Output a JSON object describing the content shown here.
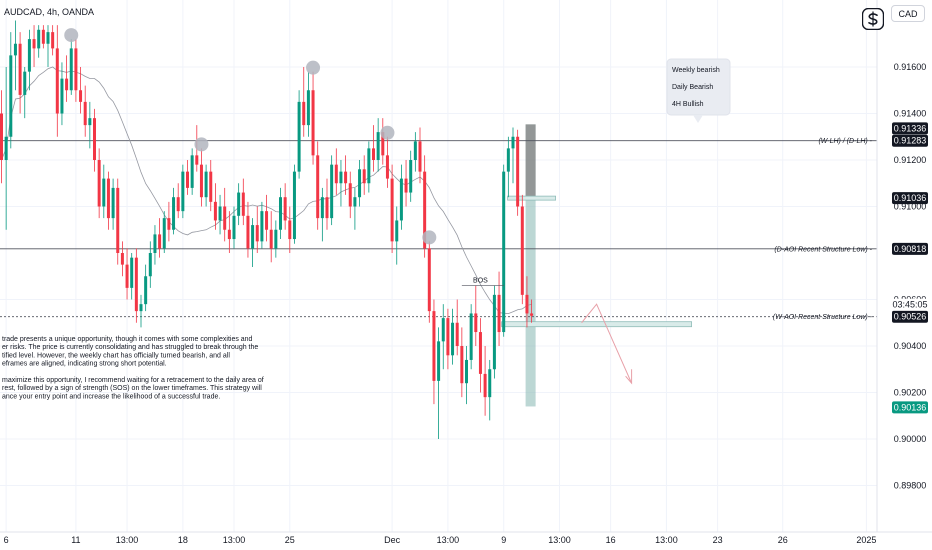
{
  "header": {
    "symbol_label": "AUDCAD, 4h, OANDA",
    "currency_button": "CAD",
    "logo_icon": "tradingview-s-logo-icon"
  },
  "chart_data": {
    "type": "candlestick",
    "symbol": "AUDCAD",
    "timeframe": "4h",
    "ylim": [
      0.898,
      0.9178
    ],
    "y_ticks": [
      {
        "value": 0.916,
        "label": "0.91600"
      },
      {
        "value": 0.914,
        "label": "0.91400"
      },
      {
        "value": 0.912,
        "label": "0.91200"
      },
      {
        "value": 0.91,
        "label": "0.91000"
      },
      {
        "value": 0.906,
        "label": "0.90600"
      },
      {
        "value": 0.904,
        "label": "0.90400"
      },
      {
        "value": 0.902,
        "label": "0.90200"
      },
      {
        "value": 0.9,
        "label": "0.90000"
      },
      {
        "value": 0.898,
        "label": "0.89800"
      }
    ],
    "x_ticks": [
      {
        "label": "6",
        "idx": 1
      },
      {
        "label": "11",
        "idx": 16
      },
      {
        "label": "13:00",
        "idx": 27
      },
      {
        "label": "18",
        "idx": 39
      },
      {
        "label": "13:00",
        "idx": 50
      },
      {
        "label": "25",
        "idx": 62
      },
      {
        "label": "Dec",
        "idx": 84
      },
      {
        "label": "13:00",
        "idx": 96
      },
      {
        "label": "9",
        "idx": 108
      },
      {
        "label": "13:00",
        "idx": 120
      },
      {
        "label": "16",
        "idx": 131
      },
      {
        "label": "13:00",
        "idx": 143
      },
      {
        "label": "23",
        "idx": 154
      },
      {
        "label": "26",
        "idx": 168
      },
      {
        "label": "2025",
        "idx": 186
      }
    ],
    "price_labels": [
      {
        "value": 0.91336,
        "label": "0.91336",
        "style": "dark"
      },
      {
        "value": 0.91283,
        "label": "0.91283",
        "style": "dark"
      },
      {
        "value": 0.91036,
        "label": "0.91036",
        "style": "dark"
      },
      {
        "value": 0.90818,
        "label": "0.90818",
        "style": "dark"
      },
      {
        "value": 0.90526,
        "label": "0.90526",
        "style": "dark"
      },
      {
        "value": 0.90136,
        "label": "0.90136",
        "style": "green"
      }
    ],
    "countdown_label": "03:45:05",
    "horizontal_lines": [
      {
        "value": 0.91283,
        "label": "(W-LH) / (D-LH)"
      },
      {
        "value": 0.90818,
        "label": "(D-AOI Recent Structure Low)"
      },
      {
        "value": 0.90526,
        "label": "(W-AOI Recent Structure Low)"
      }
    ],
    "annotations": {
      "bos_label": "BOS",
      "timeframe_box": [
        "Weekly bearish",
        "Daily Bearish",
        "4H Bullish"
      ],
      "analysis_text": [
        "trade presents a unique opportunity, though it comes with some complexities and",
        "er risks. The price is currently consolidating and has struggled to break through the",
        "tified level. However, the weekly chart has officially turned bearish, and all",
        "eframes are aligned, indicating strong short potential.",
        "",
        "maximize this opportunity, I recommend waiting for a retracement to the daily area of",
        "rest, followed by a sign of strength (SOS) on the lower timeframes. This strategy will",
        "ance your entry point and increase the likelihood of a successful trade."
      ]
    },
    "colors": {
      "up": "#089981",
      "down": "#f23645",
      "ma": "#9598a1",
      "zone": "#8fbcb8",
      "grey_zone": "#8c8c8c",
      "arrow": "#e8a0a8"
    },
    "candles": [
      [
        0.914,
        0.915,
        0.911,
        0.912
      ],
      [
        0.912,
        0.916,
        0.909,
        0.913
      ],
      [
        0.913,
        0.9175,
        0.9125,
        0.9165
      ],
      [
        0.9165,
        0.918,
        0.915,
        0.917
      ],
      [
        0.917,
        0.9175,
        0.914,
        0.9148
      ],
      [
        0.9148,
        0.916,
        0.9138,
        0.9158
      ],
      [
        0.9158,
        0.9176,
        0.915,
        0.9172
      ],
      [
        0.9172,
        0.9178,
        0.916,
        0.9168
      ],
      [
        0.9168,
        0.9178,
        0.9164,
        0.9176
      ],
      [
        0.9176,
        0.9178,
        0.9168,
        0.917
      ],
      [
        0.917,
        0.9178,
        0.916,
        0.9175
      ],
      [
        0.9175,
        0.9178,
        0.9165,
        0.9168
      ],
      [
        0.9168,
        0.9178,
        0.913,
        0.914
      ],
      [
        0.914,
        0.9162,
        0.9135,
        0.9155
      ],
      [
        0.9155,
        0.9165,
        0.9145,
        0.915
      ],
      [
        0.915,
        0.9172,
        0.9148,
        0.9168
      ],
      [
        0.9168,
        0.9172,
        0.9145,
        0.915
      ],
      [
        0.915,
        0.916,
        0.914,
        0.9145
      ],
      [
        0.9145,
        0.9152,
        0.913,
        0.9135
      ],
      [
        0.9135,
        0.9145,
        0.9125,
        0.9138
      ],
      [
        0.9138,
        0.9142,
        0.9115,
        0.912
      ],
      [
        0.912,
        0.9125,
        0.9095,
        0.91
      ],
      [
        0.91,
        0.9118,
        0.9095,
        0.9112
      ],
      [
        0.9112,
        0.9115,
        0.909,
        0.9095
      ],
      [
        0.9095,
        0.9112,
        0.909,
        0.9108
      ],
      [
        0.9108,
        0.9112,
        0.9075,
        0.908
      ],
      [
        0.908,
        0.9085,
        0.907,
        0.9075
      ],
      [
        0.9075,
        0.9082,
        0.906,
        0.9065
      ],
      [
        0.9065,
        0.908,
        0.906,
        0.9078
      ],
      [
        0.9078,
        0.9082,
        0.905,
        0.9055
      ],
      [
        0.9055,
        0.9062,
        0.9048,
        0.9058
      ],
      [
        0.9058,
        0.9075,
        0.9055,
        0.907
      ],
      [
        0.907,
        0.9085,
        0.9065,
        0.908
      ],
      [
        0.908,
        0.9092,
        0.9075,
        0.9088
      ],
      [
        0.9088,
        0.9095,
        0.9078,
        0.9082
      ],
      [
        0.9082,
        0.9098,
        0.908,
        0.9095
      ],
      [
        0.9095,
        0.9102,
        0.9085,
        0.909
      ],
      [
        0.909,
        0.9108,
        0.9088,
        0.9104
      ],
      [
        0.9104,
        0.911,
        0.9095,
        0.9098
      ],
      [
        0.9098,
        0.9118,
        0.9095,
        0.9115
      ],
      [
        0.9115,
        0.912,
        0.9105,
        0.9108
      ],
      [
        0.9108,
        0.9125,
        0.9105,
        0.9122
      ],
      [
        0.9122,
        0.9135,
        0.9115,
        0.9118
      ],
      [
        0.9118,
        0.9125,
        0.91,
        0.9104
      ],
      [
        0.9104,
        0.9118,
        0.91,
        0.9115
      ],
      [
        0.9115,
        0.912,
        0.9098,
        0.9102
      ],
      [
        0.9102,
        0.911,
        0.909,
        0.9094
      ],
      [
        0.9094,
        0.9105,
        0.9088,
        0.91
      ],
      [
        0.91,
        0.9108,
        0.9085,
        0.909
      ],
      [
        0.909,
        0.9098,
        0.908,
        0.9086
      ],
      [
        0.9086,
        0.91,
        0.9082,
        0.9096
      ],
      [
        0.9096,
        0.911,
        0.9092,
        0.9106
      ],
      [
        0.9106,
        0.9112,
        0.9092,
        0.9096
      ],
      [
        0.9096,
        0.9102,
        0.9078,
        0.9082
      ],
      [
        0.9082,
        0.9095,
        0.9074,
        0.9092
      ],
      [
        0.9092,
        0.91,
        0.908,
        0.9085
      ],
      [
        0.9085,
        0.9102,
        0.9082,
        0.9098
      ],
      [
        0.9098,
        0.9105,
        0.9085,
        0.909
      ],
      [
        0.909,
        0.9098,
        0.9076,
        0.9082
      ],
      [
        0.9082,
        0.9094,
        0.9078,
        0.909
      ],
      [
        0.909,
        0.9108,
        0.9086,
        0.9104
      ],
      [
        0.9104,
        0.911,
        0.909,
        0.9094
      ],
      [
        0.9094,
        0.91,
        0.908,
        0.9086
      ],
      [
        0.9086,
        0.9118,
        0.9084,
        0.9115
      ],
      [
        0.9115,
        0.915,
        0.9112,
        0.9145
      ],
      [
        0.9145,
        0.916,
        0.913,
        0.9135
      ],
      [
        0.9135,
        0.9158,
        0.913,
        0.915
      ],
      [
        0.915,
        0.9158,
        0.9118,
        0.9122
      ],
      [
        0.9122,
        0.9128,
        0.909,
        0.9095
      ],
      [
        0.9095,
        0.9108,
        0.9085,
        0.9104
      ],
      [
        0.9104,
        0.9112,
        0.909,
        0.9095
      ],
      [
        0.9095,
        0.9122,
        0.9092,
        0.9118
      ],
      [
        0.9118,
        0.9125,
        0.9105,
        0.911
      ],
      [
        0.911,
        0.912,
        0.91,
        0.9115
      ],
      [
        0.9115,
        0.9122,
        0.9105,
        0.911
      ],
      [
        0.911,
        0.9115,
        0.9095,
        0.91
      ],
      [
        0.91,
        0.9108,
        0.909,
        0.9104
      ],
      [
        0.9104,
        0.912,
        0.91,
        0.9116
      ],
      [
        0.9116,
        0.9122,
        0.9105,
        0.911
      ],
      [
        0.911,
        0.9128,
        0.9106,
        0.9125
      ],
      [
        0.9125,
        0.9135,
        0.9115,
        0.912
      ],
      [
        0.912,
        0.9138,
        0.9115,
        0.9132
      ],
      [
        0.9132,
        0.9138,
        0.9118,
        0.9122
      ],
      [
        0.9122,
        0.913,
        0.9108,
        0.9112
      ],
      [
        0.9112,
        0.9118,
        0.908,
        0.9085
      ],
      [
        0.9085,
        0.91,
        0.9075,
        0.9094
      ],
      [
        0.9094,
        0.9118,
        0.909,
        0.9112
      ],
      [
        0.9112,
        0.912,
        0.91,
        0.9106
      ],
      [
        0.9106,
        0.9124,
        0.9102,
        0.912
      ],
      [
        0.912,
        0.9132,
        0.9115,
        0.9128
      ],
      [
        0.9128,
        0.9134,
        0.911,
        0.9115
      ],
      [
        0.9115,
        0.9122,
        0.9078,
        0.9082
      ],
      [
        0.9082,
        0.9085,
        0.905,
        0.9055
      ],
      [
        0.9055,
        0.906,
        0.9015,
        0.9025
      ],
      [
        0.9025,
        0.9048,
        0.9,
        0.9042
      ],
      [
        0.9042,
        0.9058,
        0.903,
        0.9052
      ],
      [
        0.9052,
        0.9056,
        0.903,
        0.9036
      ],
      [
        0.9036,
        0.9056,
        0.9032,
        0.905
      ],
      [
        0.905,
        0.906,
        0.9036,
        0.904
      ],
      [
        0.904,
        0.9048,
        0.9018,
        0.9024
      ],
      [
        0.9024,
        0.904,
        0.9015,
        0.9034
      ],
      [
        0.9034,
        0.9058,
        0.903,
        0.9054
      ],
      [
        0.9054,
        0.9066,
        0.904,
        0.9046
      ],
      [
        0.9046,
        0.9052,
        0.902,
        0.9028
      ],
      [
        0.9028,
        0.904,
        0.901,
        0.9018
      ],
      [
        0.9018,
        0.9034,
        0.9008,
        0.903
      ],
      [
        0.903,
        0.9066,
        0.9026,
        0.9062
      ],
      [
        0.9062,
        0.9072,
        0.904,
        0.9046
      ],
      [
        0.9046,
        0.9118,
        0.9044,
        0.9115
      ],
      [
        0.9115,
        0.913,
        0.9104,
        0.9125
      ],
      [
        0.9125,
        0.9134,
        0.911,
        0.913
      ],
      [
        0.913,
        0.9133,
        0.9096,
        0.91
      ],
      [
        0.91,
        0.9105,
        0.9058,
        0.9062
      ],
      [
        0.9062,
        0.907,
        0.9048,
        0.9054
      ],
      [
        0.9054,
        0.906,
        0.905,
        0.9053
      ]
    ]
  }
}
